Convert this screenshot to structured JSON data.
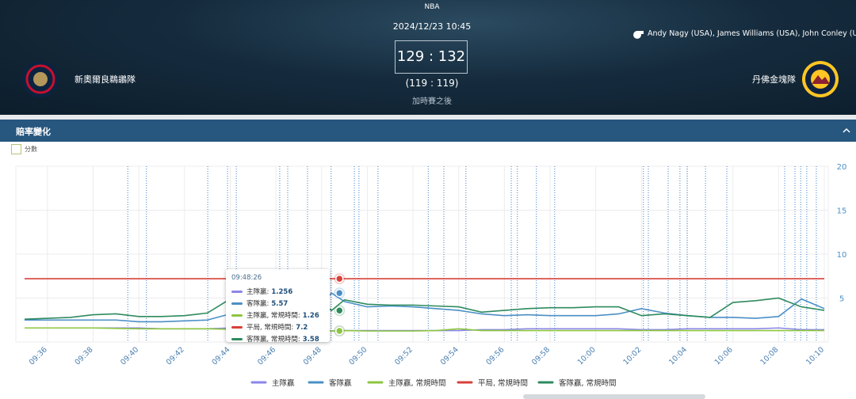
{
  "header": {
    "league": "NBA",
    "datetime": "2024/12/23 10:45",
    "score": "129 : 132",
    "regular_score": "(119 : 119)",
    "status": "加時賽之後",
    "referees": "Andy Nagy (USA), James Williams (USA), John Conley (USA)",
    "home_team": "新奧爾良鵜鶘隊",
    "away_team": "丹佛金塊隊"
  },
  "section": {
    "title": "賠率變化"
  },
  "toggle": {
    "label": "分數"
  },
  "tooltip": {
    "time": "09:48:26",
    "rows": [
      {
        "label": "主隊贏:",
        "value": 1.256,
        "color": "#8b86e8"
      },
      {
        "label": "客隊贏:",
        "value": 5.57,
        "color": "#4a8fc6"
      },
      {
        "label": "主隊贏, 常規時間:",
        "value": 1.26,
        "color": "#8dc63f"
      },
      {
        "label": "平局, 常規時間:",
        "value": 7.2,
        "color": "#d9403a"
      },
      {
        "label": "客隊贏, 常規時間:",
        "value": 3.58,
        "color": "#2e8b5e"
      }
    ]
  },
  "chart_data": {
    "type": "line",
    "x": [
      "09:35",
      "09:36",
      "09:37",
      "09:38",
      "09:39",
      "09:40",
      "09:41",
      "09:42",
      "09:43",
      "09:44",
      "09:45",
      "09:46",
      "09:47",
      "09:48",
      "09:48:26",
      "09:49",
      "09:50",
      "09:51",
      "09:52",
      "09:53",
      "09:54",
      "09:55",
      "09:56",
      "09:57",
      "09:58",
      "09:59",
      "10:00",
      "10:01",
      "10:02",
      "10:03",
      "10:04",
      "10:05",
      "10:06",
      "10:07",
      "10:08",
      "10:09",
      "10:10"
    ],
    "xlim": [
      "09:35",
      "10:10"
    ],
    "xticks": [
      "09:36",
      "09:38",
      "09:40",
      "09:42",
      "09:44",
      "09:46",
      "09:48",
      "09:50",
      "09:52",
      "09:54",
      "09:56",
      "09:58",
      "10:00",
      "10:02",
      "10:04",
      "10:06",
      "10:08",
      "10:10"
    ],
    "ylim": [
      0,
      20
    ],
    "yticks": [
      5,
      10,
      15,
      20
    ],
    "grid": true,
    "legend": "bottom",
    "events": [
      "09:39:31",
      "09:40:20",
      "09:43:01",
      "09:43:53",
      "09:44:16",
      "09:46:10",
      "09:46:31",
      "09:47:23",
      "09:48:25",
      "09:49:26",
      "09:49:38",
      "09:50:28",
      "09:52:40",
      "09:53:21",
      "09:54:19",
      "09:56:18",
      "09:56:34",
      "09:57:24",
      "09:58:12",
      "10:02:05",
      "10:02:18",
      "10:03:10",
      "10:03:41",
      "10:04:00",
      "10:04:48",
      "10:05:44",
      "10:08:16",
      "10:08:43",
      "10:08:58",
      "10:09:14",
      "10:09:39"
    ],
    "series": [
      {
        "name": "主隊贏",
        "color": "#8b86e8",
        "values": [
          1.6,
          1.6,
          1.6,
          1.6,
          1.6,
          1.6,
          1.5,
          1.5,
          1.5,
          1.6,
          1.6,
          1.5,
          1.5,
          1.4,
          1.256,
          1.3,
          1.3,
          1.3,
          1.3,
          1.3,
          1.3,
          1.4,
          1.4,
          1.5,
          1.5,
          1.5,
          1.5,
          1.5,
          1.4,
          1.4,
          1.5,
          1.5,
          1.5,
          1.5,
          1.6,
          1.4,
          1.4
        ]
      },
      {
        "name": "客隊贏",
        "color": "#4a8fc6",
        "values": [
          2.5,
          2.5,
          2.5,
          2.5,
          2.5,
          2.3,
          2.3,
          2.4,
          2.5,
          3.2,
          3.4,
          3.5,
          3.8,
          4.2,
          5.57,
          4.6,
          4.0,
          4.1,
          4.0,
          3.8,
          3.6,
          3.2,
          3.0,
          3.1,
          3.0,
          3.0,
          3.0,
          3.2,
          3.8,
          3.3,
          3.0,
          2.8,
          2.8,
          2.7,
          2.9,
          4.9,
          3.8
        ]
      },
      {
        "name": "主隊贏, 常規時間",
        "color": "#8dc63f",
        "values": [
          1.6,
          1.6,
          1.6,
          1.6,
          1.55,
          1.5,
          1.5,
          1.5,
          1.5,
          1.45,
          1.4,
          1.35,
          1.3,
          1.3,
          1.26,
          1.3,
          1.25,
          1.25,
          1.25,
          1.3,
          1.5,
          1.3,
          1.3,
          1.3,
          1.3,
          1.3,
          1.3,
          1.3,
          1.3,
          1.3,
          1.3,
          1.3,
          1.3,
          1.3,
          1.3,
          1.3,
          1.3
        ]
      },
      {
        "name": "平局, 常規時間",
        "color": "#d9403a",
        "values": [
          7.2,
          7.2,
          7.2,
          7.2,
          7.2,
          7.2,
          7.2,
          7.2,
          7.2,
          7.2,
          7.2,
          7.2,
          7.2,
          7.2,
          7.2,
          7.2,
          7.2,
          7.2,
          7.2,
          7.2,
          7.2,
          7.2,
          7.2,
          7.2,
          7.2,
          7.2,
          7.2,
          7.2,
          7.2,
          7.2,
          7.2,
          7.2,
          7.2,
          7.2,
          7.2,
          7.2,
          7.2
        ]
      },
      {
        "name": "客隊贏, 常規時間",
        "color": "#2e8b5e",
        "values": [
          2.6,
          2.7,
          2.8,
          3.1,
          3.2,
          2.9,
          2.9,
          3.0,
          3.3,
          4.9,
          4.3,
          4.5,
          4.7,
          4.5,
          3.58,
          4.8,
          4.3,
          4.2,
          4.2,
          4.1,
          4.0,
          3.4,
          3.6,
          3.8,
          3.9,
          3.9,
          4.0,
          4.0,
          3.0,
          3.2,
          3.0,
          2.8,
          4.5,
          4.7,
          5.0,
          4.0,
          3.6
        ]
      }
    ]
  }
}
